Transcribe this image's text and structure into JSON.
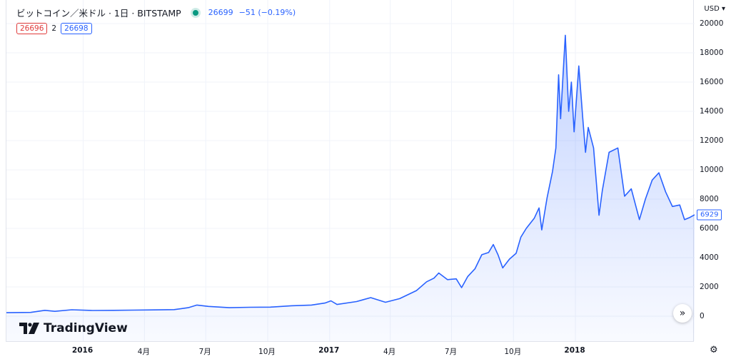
{
  "legend": {
    "symbol": "ビットコイン／米ドル · 1日 · BITSTAMP",
    "price": "26699",
    "change": "−51 (−0.19%)"
  },
  "ohlc": {
    "bid": "26696",
    "spread": "2",
    "ask": "26698"
  },
  "axis": {
    "currency": "USD ▾",
    "last_price_label": "6929"
  },
  "brand": {
    "name": "TradingView"
  },
  "icons": {
    "scroll": "double-chevron-right-icon",
    "settings": "gear-icon",
    "logo": "tradingview-logo-icon"
  },
  "colors": {
    "line": "#2962ff",
    "fill": "#e8edff",
    "live_dot": "#089981"
  },
  "chart_data": {
    "type": "area",
    "title": "",
    "xlabel": "",
    "ylabel": "",
    "ylim": [
      -500,
      21500
    ],
    "xlim": [
      "2015-09-09",
      "2018-06-27"
    ],
    "yticks": [
      0,
      2000,
      4000,
      6000,
      8000,
      10000,
      12000,
      14000,
      16000,
      18000,
      20000
    ],
    "xticks": [
      {
        "date": "2016-01-01",
        "label": "2016",
        "bold": true
      },
      {
        "date": "2016-04-01",
        "label": "4月",
        "bold": false
      },
      {
        "date": "2016-07-01",
        "label": "7月",
        "bold": false
      },
      {
        "date": "2016-10-01",
        "label": "10月",
        "bold": false
      },
      {
        "date": "2017-01-01",
        "label": "2017",
        "bold": true
      },
      {
        "date": "2017-04-01",
        "label": "4月",
        "bold": false
      },
      {
        "date": "2017-07-01",
        "label": "7月",
        "bold": false
      },
      {
        "date": "2017-10-01",
        "label": "10月",
        "bold": false
      },
      {
        "date": "2018-01-01",
        "label": "2018",
        "bold": true
      }
    ],
    "grid": true,
    "series": [
      {
        "points": [
          [
            "2015-09-09",
            240
          ],
          [
            "2015-10-15",
            260
          ],
          [
            "2015-11-05",
            400
          ],
          [
            "2015-11-20",
            330
          ],
          [
            "2015-12-15",
            440
          ],
          [
            "2016-01-15",
            390
          ],
          [
            "2016-02-15",
            400
          ],
          [
            "2016-03-15",
            415
          ],
          [
            "2016-04-15",
            430
          ],
          [
            "2016-05-15",
            450
          ],
          [
            "2016-06-05",
            580
          ],
          [
            "2016-06-18",
            760
          ],
          [
            "2016-07-05",
            670
          ],
          [
            "2016-08-05",
            580
          ],
          [
            "2016-09-05",
            610
          ],
          [
            "2016-10-05",
            620
          ],
          [
            "2016-11-05",
            710
          ],
          [
            "2016-12-05",
            760
          ],
          [
            "2016-12-25",
            900
          ],
          [
            "2017-01-03",
            1050
          ],
          [
            "2017-01-12",
            800
          ],
          [
            "2017-02-10",
            1000
          ],
          [
            "2017-03-03",
            1270
          ],
          [
            "2017-03-25",
            950
          ],
          [
            "2017-04-15",
            1200
          ],
          [
            "2017-05-10",
            1750
          ],
          [
            "2017-05-25",
            2350
          ],
          [
            "2017-06-05",
            2600
          ],
          [
            "2017-06-12",
            2950
          ],
          [
            "2017-06-25",
            2500
          ],
          [
            "2017-07-08",
            2550
          ],
          [
            "2017-07-16",
            1950
          ],
          [
            "2017-07-25",
            2700
          ],
          [
            "2017-08-05",
            3250
          ],
          [
            "2017-08-15",
            4200
          ],
          [
            "2017-08-25",
            4350
          ],
          [
            "2017-09-01",
            4900
          ],
          [
            "2017-09-08",
            4200
          ],
          [
            "2017-09-15",
            3300
          ],
          [
            "2017-09-25",
            3900
          ],
          [
            "2017-10-05",
            4300
          ],
          [
            "2017-10-12",
            5400
          ],
          [
            "2017-10-20",
            6000
          ],
          [
            "2017-11-01",
            6700
          ],
          [
            "2017-11-08",
            7400
          ],
          [
            "2017-11-12",
            5900
          ],
          [
            "2017-11-20",
            8100
          ],
          [
            "2017-11-28",
            9900
          ],
          [
            "2017-12-03",
            11500
          ],
          [
            "2017-12-07",
            16500
          ],
          [
            "2017-12-10",
            13500
          ],
          [
            "2017-12-15",
            17600
          ],
          [
            "2017-12-17",
            19200
          ],
          [
            "2017-12-22",
            14000
          ],
          [
            "2017-12-26",
            16000
          ],
          [
            "2017-12-30",
            12600
          ],
          [
            "2018-01-06",
            17100
          ],
          [
            "2018-01-12",
            13500
          ],
          [
            "2018-01-16",
            11200
          ],
          [
            "2018-01-20",
            12900
          ],
          [
            "2018-01-28",
            11500
          ],
          [
            "2018-02-05",
            6900
          ],
          [
            "2018-02-10",
            8600
          ],
          [
            "2018-02-20",
            11200
          ],
          [
            "2018-03-05",
            11500
          ],
          [
            "2018-03-15",
            8200
          ],
          [
            "2018-03-25",
            8700
          ],
          [
            "2018-04-06",
            6600
          ],
          [
            "2018-04-15",
            8000
          ],
          [
            "2018-04-25",
            9300
          ],
          [
            "2018-05-05",
            9800
          ],
          [
            "2018-05-15",
            8500
          ],
          [
            "2018-05-25",
            7500
          ],
          [
            "2018-06-05",
            7600
          ],
          [
            "2018-06-12",
            6600
          ],
          [
            "2018-06-20",
            6750
          ],
          [
            "2018-06-27",
            6929
          ]
        ]
      }
    ]
  }
}
